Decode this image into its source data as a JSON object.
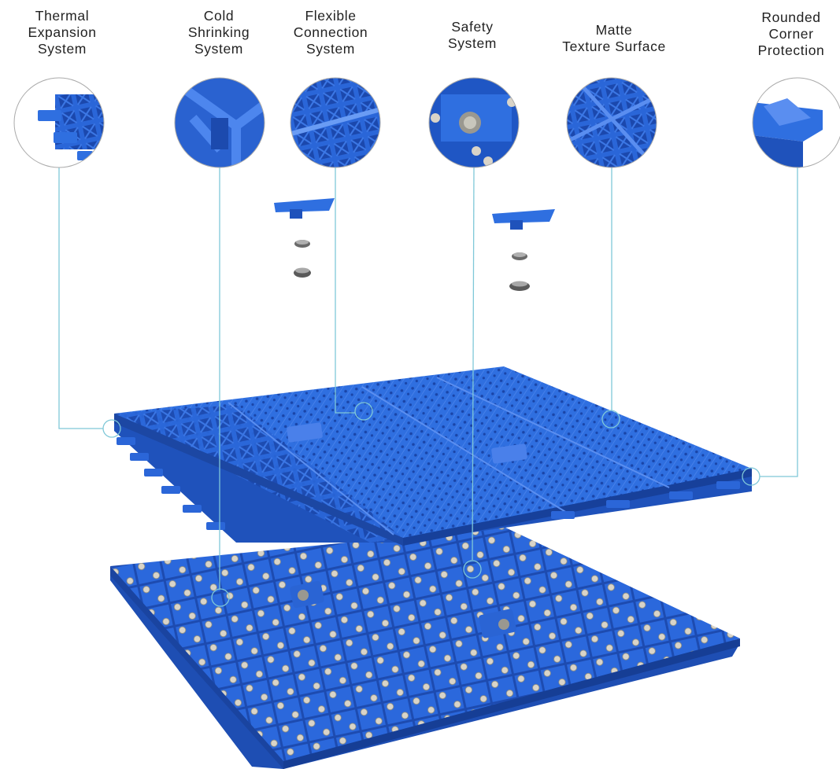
{
  "labels": {
    "thermal": [
      "Thermal",
      "Expansion",
      "System"
    ],
    "cold": [
      "Cold",
      "Shrinking",
      "System"
    ],
    "flexible": [
      "Flexible",
      "Connection",
      "System"
    ],
    "safety": [
      "Safety",
      "System"
    ],
    "matte": [
      "Matte",
      "Texture Surface"
    ],
    "corner": [
      "Rounded",
      "Corner",
      "Protection"
    ]
  },
  "colors": {
    "tile": "#2f6fe0",
    "tile_dark": "#1f4fb5",
    "tile_light": "#5a8ef0",
    "callout_line": "#7fc8d8",
    "peg": "#d9d4c8"
  }
}
